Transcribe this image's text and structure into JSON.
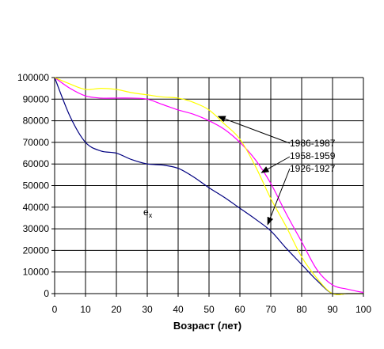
{
  "chart_data": {
    "type": "line",
    "xlabel": "Возраст (лет)",
    "ylabel": "",
    "title": "",
    "xlim": [
      0,
      100
    ],
    "ylim": [
      0,
      100000
    ],
    "x_ticks": [
      "0",
      "10",
      "20",
      "30",
      "40",
      "50",
      "60",
      "70",
      "80",
      "90",
      "100"
    ],
    "y_ticks": [
      "0",
      "10000",
      "20000",
      "30000",
      "40000",
      "50000",
      "60000",
      "70000",
      "80000",
      "90000",
      "100000"
    ],
    "grid": true,
    "legend": "none",
    "series": [
      {
        "color": "#000080",
        "x": [
          0,
          5,
          10,
          15,
          20,
          25,
          30,
          35,
          40,
          45,
          50,
          55,
          60,
          65,
          70,
          75,
          80,
          85,
          90,
          95,
          100
        ],
        "y": [
          100000,
          82000,
          70000,
          66000,
          65000,
          62000,
          60000,
          59500,
          58000,
          54000,
          49000,
          44500,
          39500,
          34500,
          29000,
          21000,
          13500,
          6000,
          0,
          0,
          0
        ]
      },
      {
        "color": "#FF00FF",
        "x": [
          0,
          5,
          10,
          15,
          20,
          25,
          30,
          35,
          40,
          45,
          50,
          55,
          60,
          65,
          70,
          75,
          80,
          85,
          90,
          95,
          100
        ],
        "y": [
          100000,
          95000,
          91500,
          90500,
          90500,
          90500,
          90000,
          87500,
          85000,
          83000,
          80000,
          76000,
          70000,
          62000,
          51000,
          37000,
          24000,
          11000,
          4000,
          2000,
          500
        ]
      },
      {
        "color": "#FFFF00",
        "x": [
          0,
          5,
          10,
          15,
          20,
          25,
          30,
          35,
          40,
          45,
          50,
          55,
          60,
          65,
          70,
          75,
          80,
          85,
          90,
          95,
          100
        ],
        "y": [
          100000,
          97000,
          94500,
          95000,
          94500,
          93000,
          92000,
          91000,
          90500,
          88500,
          85000,
          78500,
          71500,
          59000,
          44000,
          31000,
          17000,
          7000,
          0,
          0,
          0
        ]
      }
    ],
    "annotations": [
      {
        "text": "1986-1987",
        "pointer_to": [
          53,
          82000
        ]
      },
      {
        "text": "1958-1959",
        "pointer_to": [
          67,
          56000
        ]
      },
      {
        "text": "1926-1927",
        "pointer_to": [
          69,
          32000
        ]
      },
      {
        "text": "e",
        "subscript": "x"
      }
    ]
  }
}
